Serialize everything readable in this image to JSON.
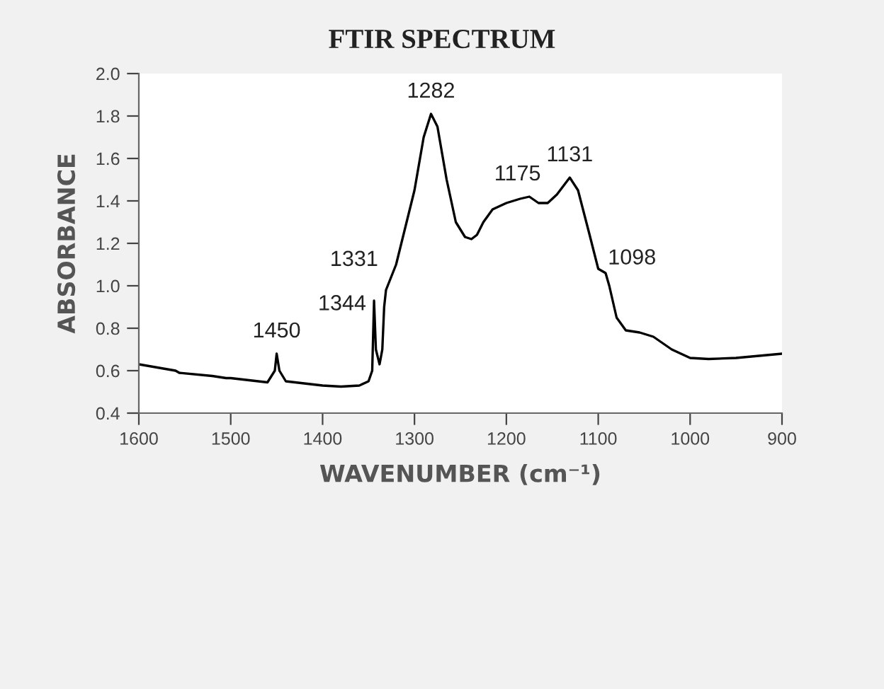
{
  "chart_data": {
    "type": "line",
    "title": "FTIR SPECTRUM",
    "xlabel": "WAVENUMBER (cm⁻¹)",
    "ylabel": "ABSORBANCE",
    "series": [
      {
        "color": "#000000",
        "x": [
          1600,
          1560,
          1558,
          1556,
          1520,
          1505,
          1500,
          1460,
          1452,
          1450,
          1447,
          1440,
          1400,
          1380,
          1360,
          1350,
          1346,
          1344,
          1342,
          1338,
          1335,
          1333,
          1331,
          1320,
          1300,
          1290,
          1282,
          1275,
          1265,
          1255,
          1245,
          1238,
          1232,
          1225,
          1215,
          1200,
          1185,
          1175,
          1165,
          1155,
          1145,
          1131,
          1122,
          1110,
          1100,
          1092,
          1088,
          1080,
          1070,
          1055,
          1040,
          1020,
          1000,
          980,
          950,
          900
        ],
        "values": [
          0.63,
          0.6,
          0.595,
          0.59,
          0.575,
          0.565,
          0.565,
          0.545,
          0.6,
          0.68,
          0.6,
          0.55,
          0.53,
          0.525,
          0.53,
          0.55,
          0.6,
          0.93,
          0.7,
          0.63,
          0.7,
          0.9,
          0.98,
          1.1,
          1.45,
          1.7,
          1.81,
          1.75,
          1.5,
          1.3,
          1.23,
          1.22,
          1.24,
          1.3,
          1.36,
          1.39,
          1.41,
          1.42,
          1.39,
          1.39,
          1.43,
          1.51,
          1.45,
          1.25,
          1.08,
          1.06,
          1.0,
          0.85,
          0.79,
          0.78,
          0.76,
          0.7,
          0.66,
          0.655,
          0.66,
          0.68
        ]
      }
    ],
    "annotations": [
      {
        "text": "1450",
        "x": 1450,
        "y": 0.68
      },
      {
        "text": "1344",
        "x": 1344,
        "y": 0.93
      },
      {
        "text": "1331",
        "x": 1331,
        "y": 0.98
      },
      {
        "text": "1282",
        "x": 1282,
        "y": 1.81
      },
      {
        "text": "1175",
        "x": 1175,
        "y": 1.42
      },
      {
        "text": "1131",
        "x": 1131,
        "y": 1.51
      },
      {
        "text": "1098",
        "x": 1098,
        "y": 1.08
      }
    ],
    "xlim": [
      1600,
      900
    ],
    "xticks": [
      1600,
      1500,
      1400,
      1300,
      1200,
      1100,
      1000,
      900
    ],
    "ylim": [
      0.4,
      2.0
    ],
    "yticks": [
      {
        "value": 0.4,
        "label": "0.4"
      },
      {
        "value": 0.6,
        "label": "0.6"
      },
      {
        "value": 0.8,
        "label": "0.8"
      },
      {
        "value": 1.0,
        "label": "1.0"
      },
      {
        "value": 1.2,
        "label": "1.2"
      },
      {
        "value": 1.4,
        "label": "1.4"
      },
      {
        "value": 1.6,
        "label": "1.6"
      },
      {
        "value": 1.8,
        "label": "1.8"
      },
      {
        "value": 2.0,
        "label": "2.0"
      }
    ],
    "grid": false,
    "legend": false
  }
}
